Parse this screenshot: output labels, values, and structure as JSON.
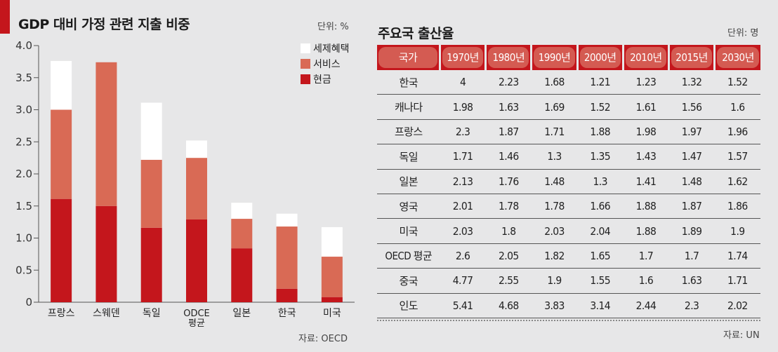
{
  "left": {
    "title": "GDP 대비 가정 관련 지출 비중",
    "unit": "단위: %",
    "source": "자료: OECD"
  },
  "right": {
    "title": "주요국 출산율",
    "unit": "단위: 명",
    "source": "자료: UN",
    "table": {
      "headers": [
        "국가",
        "1970년",
        "1980년",
        "1990년",
        "2000년",
        "2010년",
        "2015년",
        "2030년"
      ],
      "rows": [
        [
          "한국",
          "4",
          "2.23",
          "1.68",
          "1.21",
          "1.23",
          "1.32",
          "1.52"
        ],
        [
          "캐나다",
          "1.98",
          "1.63",
          "1.69",
          "1.52",
          "1.61",
          "1.56",
          "1.6"
        ],
        [
          "프랑스",
          "2.3",
          "1.87",
          "1.71",
          "1.88",
          "1.98",
          "1.97",
          "1.96"
        ],
        [
          "독일",
          "1.71",
          "1.46",
          "1.3",
          "1.35",
          "1.43",
          "1.47",
          "1.57"
        ],
        [
          "일본",
          "2.13",
          "1.76",
          "1.48",
          "1.3",
          "1.41",
          "1.48",
          "1.62"
        ],
        [
          "영국",
          "2.01",
          "1.78",
          "1.78",
          "1.66",
          "1.88",
          "1.87",
          "1.86"
        ],
        [
          "미국",
          "2.03",
          "1.8",
          "2.03",
          "2.04",
          "1.88",
          "1.89",
          "1.9"
        ],
        [
          "OECD 평균",
          "2.6",
          "2.05",
          "1.82",
          "1.65",
          "1.7",
          "1.7",
          "1.74"
        ],
        [
          "중국",
          "4.77",
          "2.55",
          "1.9",
          "1.55",
          "1.6",
          "1.63",
          "1.71"
        ],
        [
          "인도",
          "5.41",
          "4.68",
          "3.83",
          "3.14",
          "2.44",
          "2.3",
          "2.02"
        ]
      ]
    }
  },
  "colors": {
    "accent": "#c4161c",
    "cash": "#c4161c",
    "service": "#d96a55",
    "tax": "#ffffff",
    "header_pill": "#d45b52"
  },
  "chart_data": {
    "type": "bar",
    "stacked": true,
    "title": "GDP 대비 가정 관련 지출 비중",
    "categories": [
      "프랑스",
      "스웨덴",
      "독일",
      "ODCE\n평균",
      "일본",
      "한국",
      "미국"
    ],
    "series": [
      {
        "name": "현금",
        "values": [
          1.61,
          1.5,
          1.16,
          1.29,
          0.84,
          0.21,
          0.08
        ]
      },
      {
        "name": "서비스",
        "values": [
          1.39,
          2.24,
          1.06,
          0.96,
          0.46,
          0.97,
          0.63
        ]
      },
      {
        "name": "세제혜택",
        "values": [
          0.76,
          0,
          0.89,
          0.27,
          0.25,
          0.2,
          0.46
        ]
      }
    ],
    "yticks": [
      "4.0",
      "3.5",
      "3.0",
      "2.5",
      "2.0",
      "1.5",
      "1.0",
      "0.5",
      "0"
    ],
    "ylim": [
      0,
      4.0
    ],
    "legend": "top-right",
    "grid": false
  }
}
